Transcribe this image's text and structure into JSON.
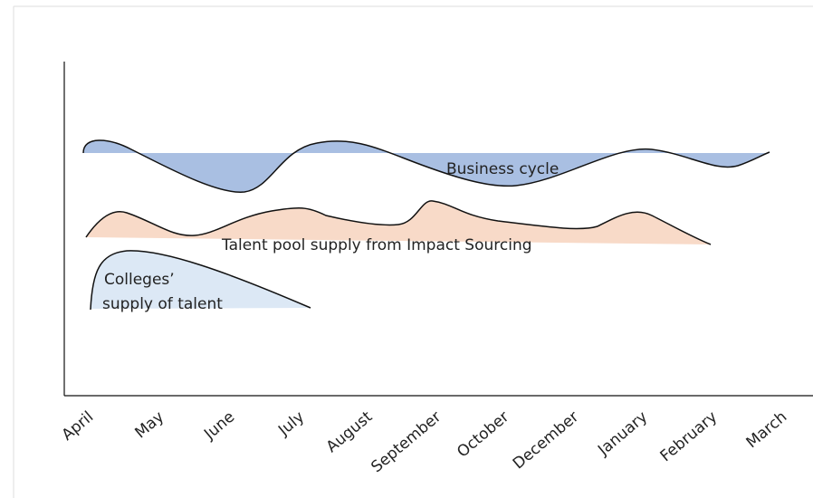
{
  "months": [
    "April",
    "May",
    "June",
    "July",
    "August",
    "September",
    "October",
    "December",
    "January",
    "February",
    "March"
  ],
  "curves": {
    "business_cycle": "Business cycle",
    "talent_pool": "Talent pool supply from Impact Sourcing",
    "colleges": [
      "Colleges’",
      "supply of talent"
    ]
  }
}
